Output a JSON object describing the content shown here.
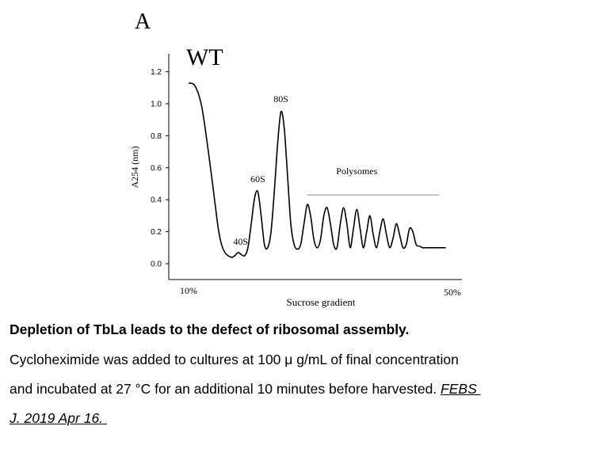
{
  "chart_data": {
    "type": "line",
    "panel_label": "A",
    "title": "WT",
    "xlabel": "Sucrose gradient",
    "ylabel": "A254 (nm)",
    "x_tick_labels": [
      "10%",
      "50%"
    ],
    "xlim": [
      10,
      50
    ],
    "ylim": [
      -0.05,
      1.25
    ],
    "y_ticks": [
      0.0,
      0.2,
      0.4,
      0.6,
      0.8,
      1.0,
      1.2
    ],
    "y_tick_labels": [
      "0.0",
      "0.2",
      "0.4",
      "0.6",
      "0.8",
      "1.0",
      "1.2"
    ],
    "grid": false,
    "series": [
      {
        "x": [
          10.0,
          11.0,
          12.0,
          13.0,
          14.0,
          14.5,
          15.0,
          15.5,
          16.0,
          16.6,
          17.0,
          17.5,
          17.9,
          18.5,
          19.0,
          19.5,
          20.0,
          20.5,
          21.0,
          21.5,
          22.0,
          22.5,
          23.0,
          23.5,
          24.0,
          24.5,
          25.0,
          25.5,
          26.0,
          26.5,
          27.0,
          27.5,
          28.0,
          28.5,
          29.0,
          29.5,
          30.0,
          30.5,
          31.0,
          31.5,
          32.0,
          32.5,
          33.0,
          33.5,
          34.0,
          34.5,
          35.0,
          35.5,
          36.0,
          36.5,
          37.0,
          37.5,
          38.0,
          38.5,
          39.0,
          39.5,
          40.0,
          40.5,
          41.0,
          41.5,
          42.0,
          42.5,
          43.0,
          43.5,
          44.0,
          44.5,
          45.0,
          45.5,
          46.0,
          46.5,
          47.0,
          47.5,
          48.0,
          48.5,
          49.0
        ],
        "y": [
          1.13,
          1.11,
          0.98,
          0.7,
          0.38,
          0.22,
          0.12,
          0.07,
          0.05,
          0.04,
          0.05,
          0.07,
          0.06,
          0.05,
          0.1,
          0.25,
          0.41,
          0.45,
          0.3,
          0.12,
          0.1,
          0.2,
          0.45,
          0.75,
          0.95,
          0.85,
          0.55,
          0.25,
          0.12,
          0.09,
          0.12,
          0.25,
          0.37,
          0.3,
          0.15,
          0.1,
          0.15,
          0.3,
          0.35,
          0.25,
          0.12,
          0.1,
          0.25,
          0.35,
          0.25,
          0.1,
          0.22,
          0.34,
          0.22,
          0.1,
          0.2,
          0.3,
          0.18,
          0.1,
          0.2,
          0.28,
          0.18,
          0.1,
          0.16,
          0.25,
          0.18,
          0.1,
          0.12,
          0.22,
          0.2,
          0.12,
          0.11,
          0.1,
          0.1,
          0.1,
          0.1,
          0.1,
          0.1,
          0.1,
          0.1
        ]
      }
    ],
    "annotations": [
      {
        "text": "40S",
        "x": 17.9,
        "y": 0.06
      },
      {
        "text": "60S",
        "x": 20.5,
        "y": 0.45
      },
      {
        "text": "80S",
        "x": 24.0,
        "y": 0.95
      },
      {
        "text": "Polysomes",
        "x": 35.5,
        "y": 0.45
      }
    ],
    "polysome_bracket": {
      "x_start": 28.0,
      "x_end": 48.0,
      "y": 0.43
    }
  },
  "caption": {
    "title": "Depletion of TbLa leads to the defect of ribosomal assembly.",
    "line1": "Cycloheximide was added to cultures at 100 μ g/mL of final concentration",
    "line2_text": "and incubated at 27 °C for an additional 10 minutes before harvested. ",
    "citation_part1": "FEBS ",
    "citation_part2": "J. 2019 Apr 16. "
  }
}
